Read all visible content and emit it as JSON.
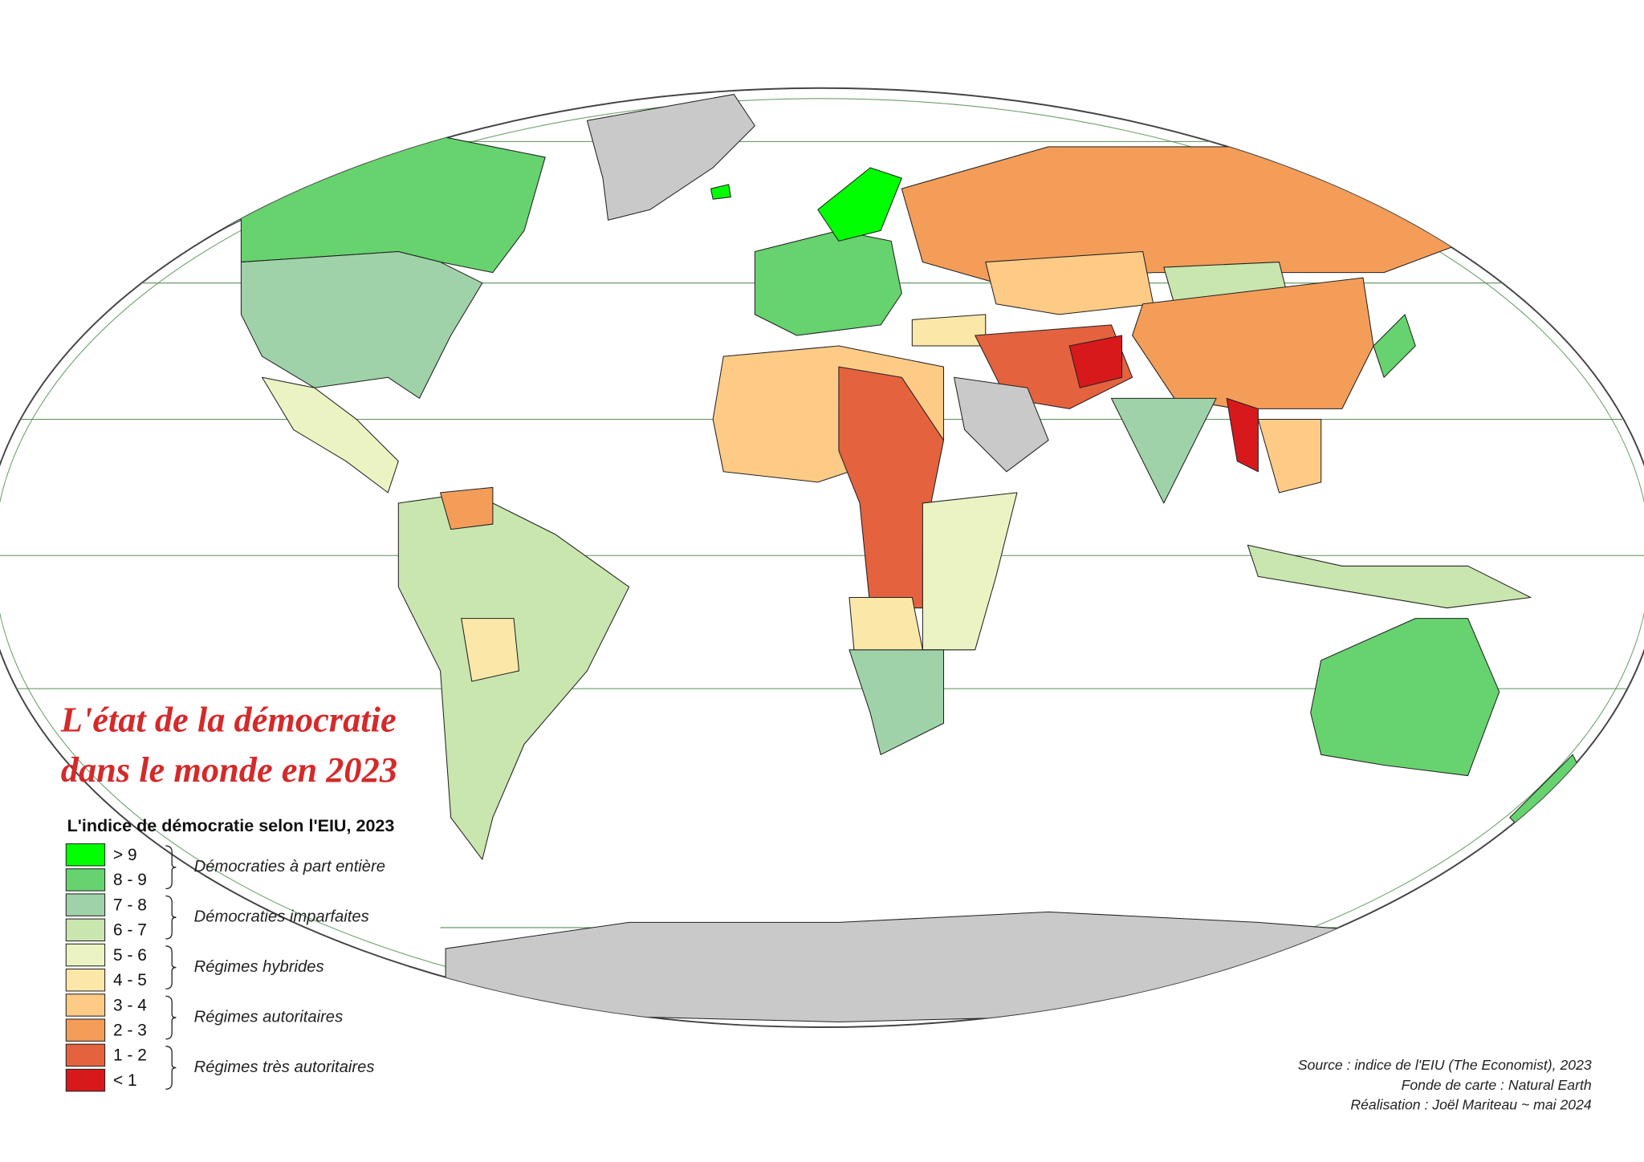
{
  "title": [
    "L'état de la démocratie",
    "dans le monde en 2023"
  ],
  "legend": {
    "title": "L'indice de démocratie selon l'EIU, 2023",
    "classes": [
      {
        "label": "> 9",
        "color": "#00ff00"
      },
      {
        "label": "8 - 9",
        "color": "#66d36e"
      },
      {
        "label": "7 - 8",
        "color": "#9fd2a8"
      },
      {
        "label": "6 - 7",
        "color": "#c8e6ae"
      },
      {
        "label": "5 - 6",
        "color": "#ecf3c2"
      },
      {
        "label": "4 - 5",
        "color": "#fbe8a9"
      },
      {
        "label": "3 - 4",
        "color": "#fdcb86"
      },
      {
        "label": "2 - 3",
        "color": "#f49d59"
      },
      {
        "label": "1 - 2",
        "color": "#e5623f"
      },
      {
        "label": "< 1",
        "color": "#d7191c"
      }
    ],
    "groups": [
      "Démocraties à part entière",
      "Démocraties imparfaites",
      "Régimes hybrides",
      "Régimes autoritaires",
      "Régimes très autoritaires"
    ]
  },
  "credits": [
    "Source : indice de l'EIU (The Economist), 2023",
    "Fonde de carte : Natural Earth",
    "Réalisation : Joël Mariteau ~ mai 2024"
  ]
}
